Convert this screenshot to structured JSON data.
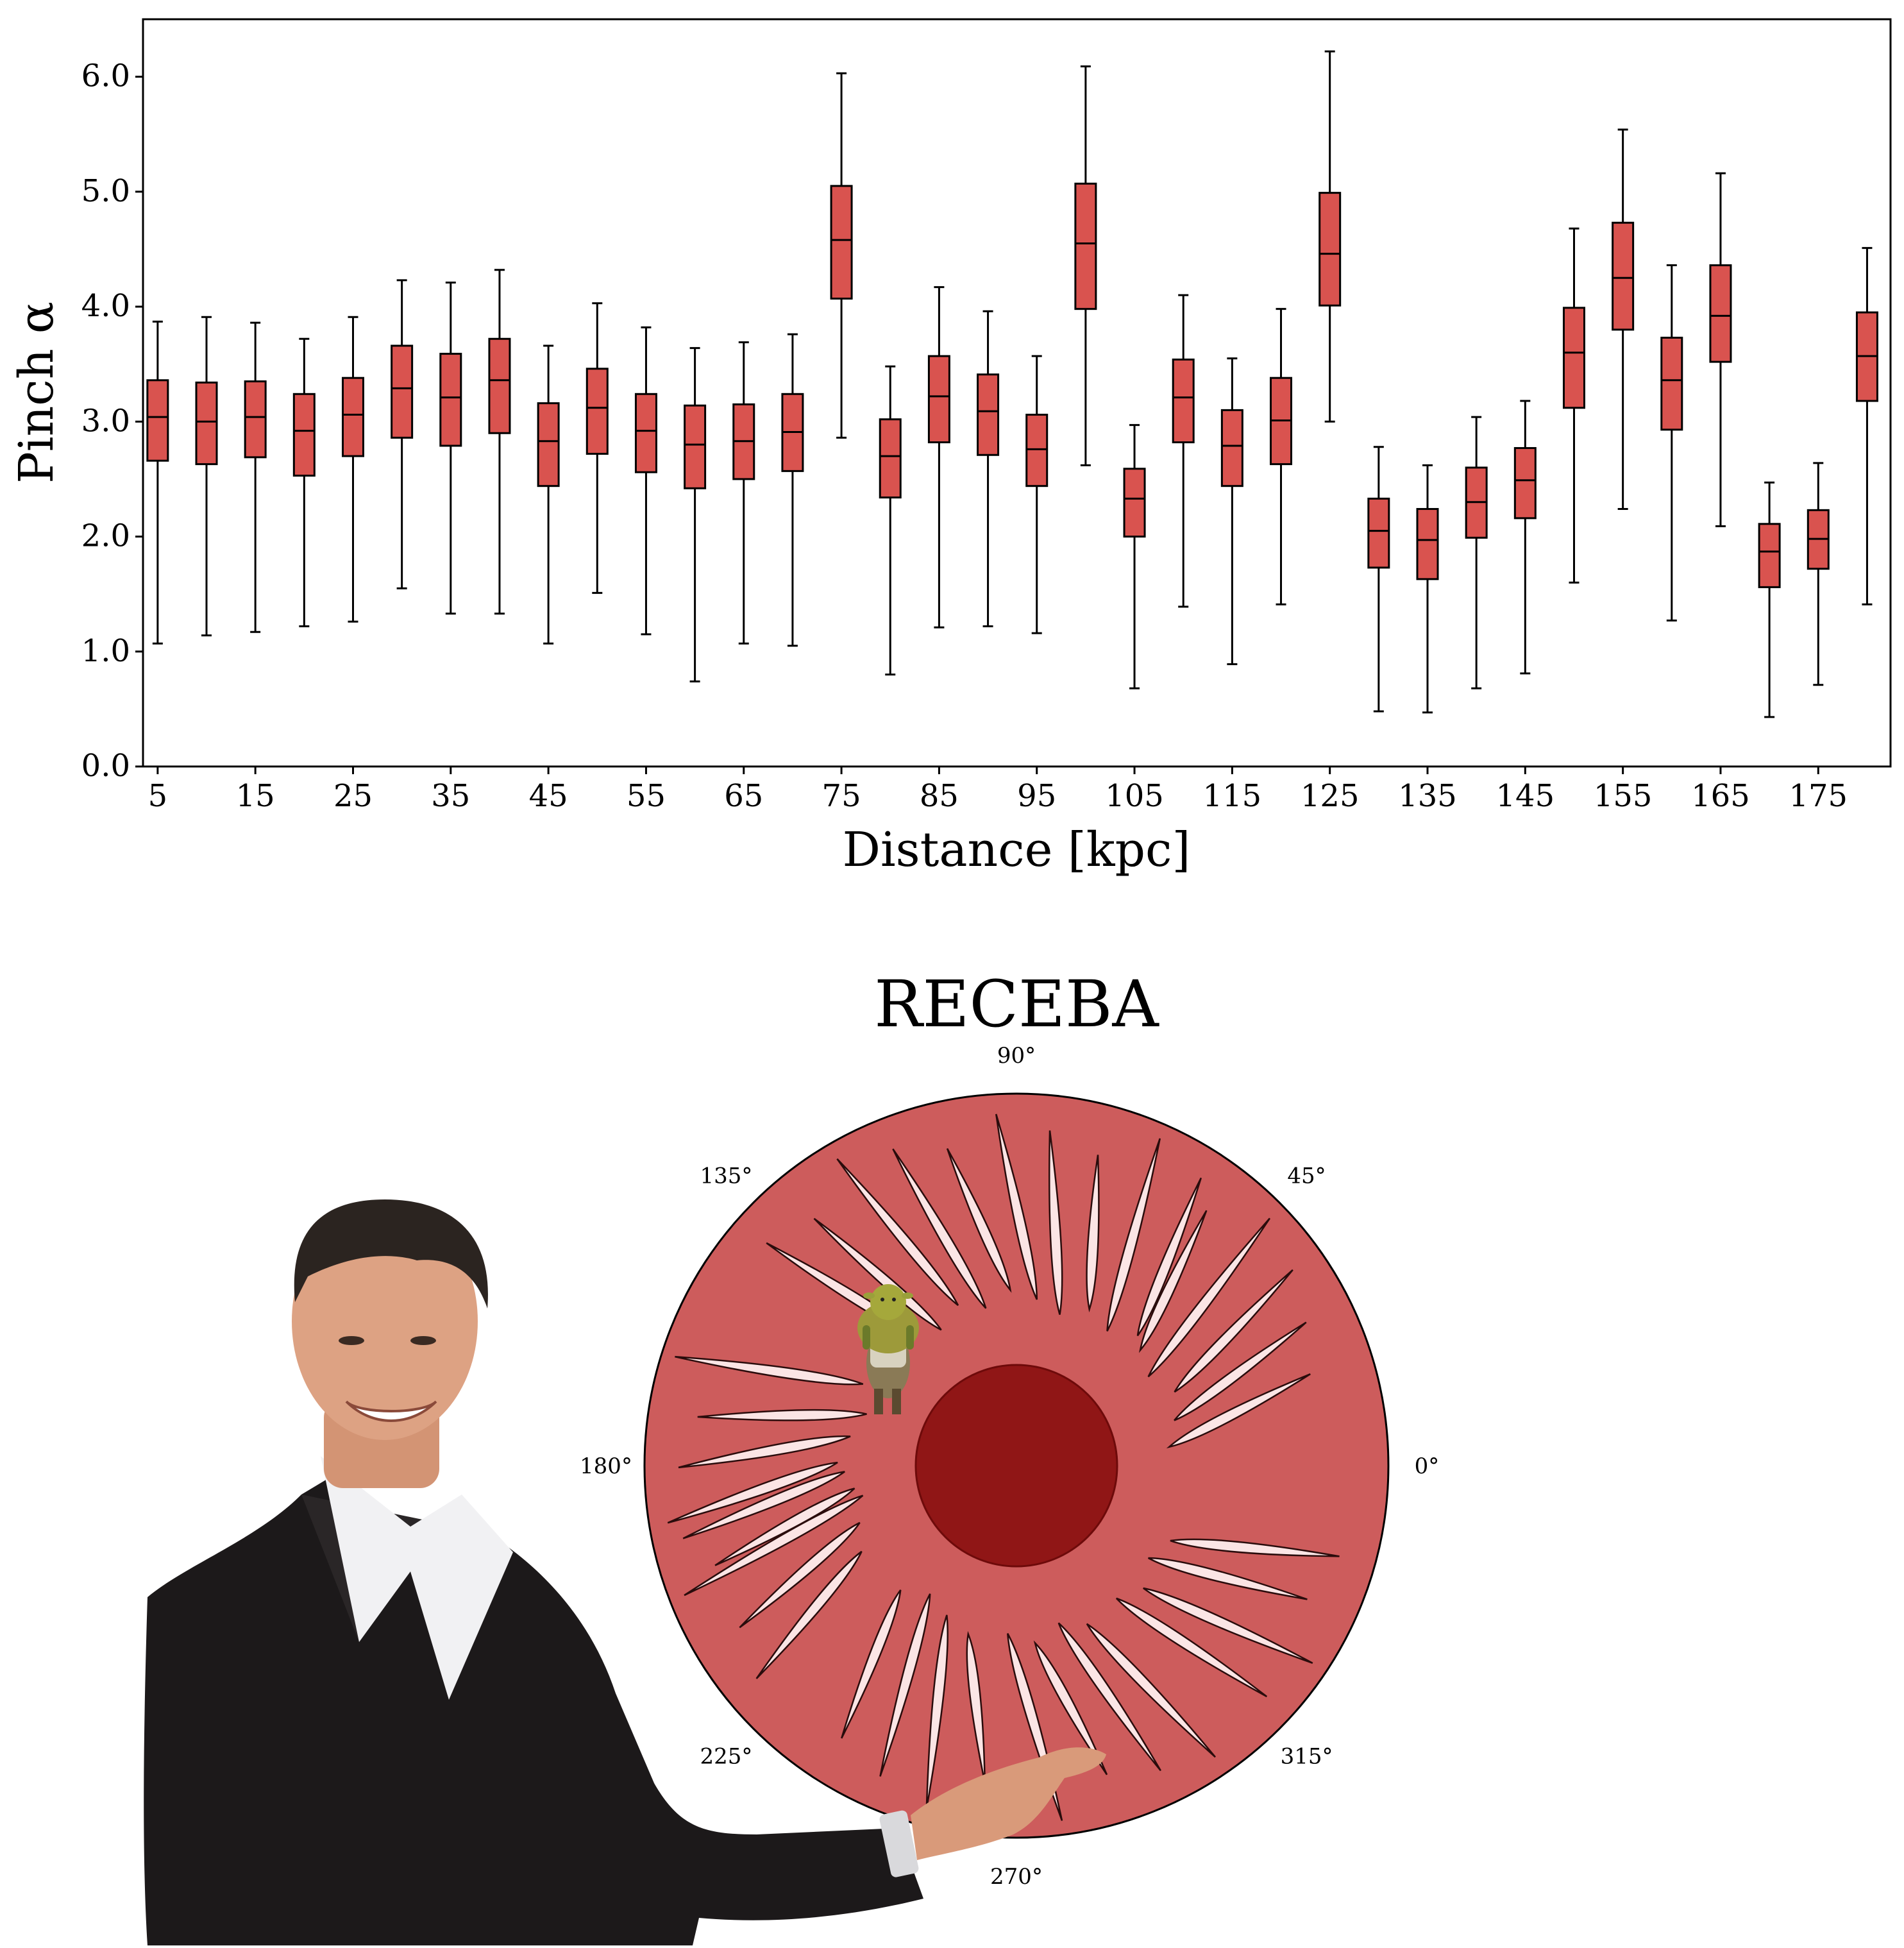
{
  "chart_data": [
    {
      "type": "box",
      "xlabel": "Distance [kpc]",
      "ylabel": "Pinch α",
      "ylim": [
        0.0,
        6.5
      ],
      "yticks": [
        0.0,
        1.0,
        2.0,
        3.0,
        4.0,
        5.0,
        6.0
      ],
      "ytick_labels": [
        "0.0",
        "1.0",
        "2.0",
        "3.0",
        "4.0",
        "5.0",
        "6.0"
      ],
      "xtick_labels": [
        "5",
        "15",
        "25",
        "35",
        "45",
        "55",
        "65",
        "75",
        "85",
        "95",
        "105",
        "115",
        "125",
        "135",
        "145",
        "155",
        "165",
        "175"
      ],
      "box_color": "#d9534f",
      "edge_color": "#000000",
      "boxes": [
        {
          "x": 5,
          "whislo": 1.07,
          "q1": 2.66,
          "med": 3.04,
          "q3": 3.36,
          "whishi": 3.87
        },
        {
          "x": 10,
          "whislo": 1.14,
          "q1": 2.63,
          "med": 3.0,
          "q3": 3.34,
          "whishi": 3.91
        },
        {
          "x": 15,
          "whislo": 1.17,
          "q1": 2.69,
          "med": 3.04,
          "q3": 3.35,
          "whishi": 3.86
        },
        {
          "x": 20,
          "whislo": 1.22,
          "q1": 2.53,
          "med": 2.92,
          "q3": 3.24,
          "whishi": 3.72
        },
        {
          "x": 25,
          "whislo": 1.26,
          "q1": 2.7,
          "med": 3.06,
          "q3": 3.38,
          "whishi": 3.91
        },
        {
          "x": 30,
          "whislo": 1.55,
          "q1": 2.86,
          "med": 3.29,
          "q3": 3.66,
          "whishi": 4.23
        },
        {
          "x": 35,
          "whislo": 1.33,
          "q1": 2.79,
          "med": 3.21,
          "q3": 3.59,
          "whishi": 4.21
        },
        {
          "x": 40,
          "whislo": 1.33,
          "q1": 2.9,
          "med": 3.36,
          "q3": 3.72,
          "whishi": 4.32
        },
        {
          "x": 45,
          "whislo": 1.07,
          "q1": 2.44,
          "med": 2.83,
          "q3": 3.16,
          "whishi": 3.66
        },
        {
          "x": 50,
          "whislo": 1.51,
          "q1": 2.72,
          "med": 3.12,
          "q3": 3.46,
          "whishi": 4.03
        },
        {
          "x": 55,
          "whislo": 1.15,
          "q1": 2.56,
          "med": 2.92,
          "q3": 3.24,
          "whishi": 3.82
        },
        {
          "x": 60,
          "whislo": 0.74,
          "q1": 2.42,
          "med": 2.8,
          "q3": 3.14,
          "whishi": 3.64
        },
        {
          "x": 65,
          "whislo": 1.07,
          "q1": 2.5,
          "med": 2.83,
          "q3": 3.15,
          "whishi": 3.69
        },
        {
          "x": 70,
          "whislo": 1.05,
          "q1": 2.57,
          "med": 2.91,
          "q3": 3.24,
          "whishi": 3.76
        },
        {
          "x": 75,
          "whislo": 2.86,
          "q1": 4.07,
          "med": 4.58,
          "q3": 5.05,
          "whishi": 6.03
        },
        {
          "x": 80,
          "whislo": 0.8,
          "q1": 2.34,
          "med": 2.7,
          "q3": 3.02,
          "whishi": 3.48
        },
        {
          "x": 85,
          "whislo": 1.21,
          "q1": 2.82,
          "med": 3.22,
          "q3": 3.57,
          "whishi": 4.17
        },
        {
          "x": 90,
          "whislo": 1.22,
          "q1": 2.71,
          "med": 3.09,
          "q3": 3.41,
          "whishi": 3.96
        },
        {
          "x": 95,
          "whislo": 1.16,
          "q1": 2.44,
          "med": 2.76,
          "q3": 3.06,
          "whishi": 3.57
        },
        {
          "x": 100,
          "whislo": 2.62,
          "q1": 3.98,
          "med": 4.55,
          "q3": 5.07,
          "whishi": 6.09
        },
        {
          "x": 105,
          "whislo": 0.68,
          "q1": 2.0,
          "med": 2.33,
          "q3": 2.59,
          "whishi": 2.97
        },
        {
          "x": 110,
          "whislo": 1.39,
          "q1": 2.82,
          "med": 3.21,
          "q3": 3.54,
          "whishi": 4.1
        },
        {
          "x": 115,
          "whislo": 0.89,
          "q1": 2.44,
          "med": 2.79,
          "q3": 3.1,
          "whishi": 3.55
        },
        {
          "x": 120,
          "whislo": 1.41,
          "q1": 2.63,
          "med": 3.01,
          "q3": 3.38,
          "whishi": 3.98
        },
        {
          "x": 125,
          "whislo": 3.0,
          "q1": 4.01,
          "med": 4.46,
          "q3": 4.99,
          "whishi": 6.22
        },
        {
          "x": 130,
          "whislo": 0.48,
          "q1": 1.73,
          "med": 2.05,
          "q3": 2.33,
          "whishi": 2.78
        },
        {
          "x": 135,
          "whislo": 0.47,
          "q1": 1.63,
          "med": 1.97,
          "q3": 2.24,
          "whishi": 2.62
        },
        {
          "x": 140,
          "whislo": 0.68,
          "q1": 1.99,
          "med": 2.3,
          "q3": 2.6,
          "whishi": 3.04
        },
        {
          "x": 145,
          "whislo": 0.81,
          "q1": 2.16,
          "med": 2.49,
          "q3": 2.77,
          "whishi": 3.18
        },
        {
          "x": 150,
          "whislo": 1.6,
          "q1": 3.12,
          "med": 3.6,
          "q3": 3.99,
          "whishi": 4.68
        },
        {
          "x": 155,
          "whislo": 2.24,
          "q1": 3.8,
          "med": 4.25,
          "q3": 4.73,
          "whishi": 5.54
        },
        {
          "x": 160,
          "whislo": 1.27,
          "q1": 2.93,
          "med": 3.36,
          "q3": 3.73,
          "whishi": 4.36
        },
        {
          "x": 165,
          "whislo": 2.09,
          "q1": 3.52,
          "med": 3.92,
          "q3": 4.36,
          "whishi": 5.16
        },
        {
          "x": 170,
          "whislo": 0.43,
          "q1": 1.56,
          "med": 1.87,
          "q3": 2.11,
          "whishi": 2.47
        },
        {
          "x": 175,
          "whislo": 0.71,
          "q1": 1.72,
          "med": 1.98,
          "q3": 2.23,
          "whishi": 2.64
        },
        {
          "x": 180,
          "whislo": 1.41,
          "q1": 3.18,
          "med": 3.57,
          "q3": 3.95,
          "whishi": 4.51
        }
      ]
    },
    {
      "type": "polar",
      "title": "RECEBA",
      "angle_labels": [
        "0°",
        "45°",
        "90°",
        "135°",
        "180°",
        "225°",
        "270°",
        "315°"
      ],
      "disk_color": "#cd5c5c",
      "core_color": "#8b1010",
      "streak_color": "#fbe5e5",
      "streak_count": 36
    }
  ],
  "illustrations": {
    "presenter": "person-in-dark-suit-presenting",
    "figure": "small-green-ogre-figure"
  }
}
